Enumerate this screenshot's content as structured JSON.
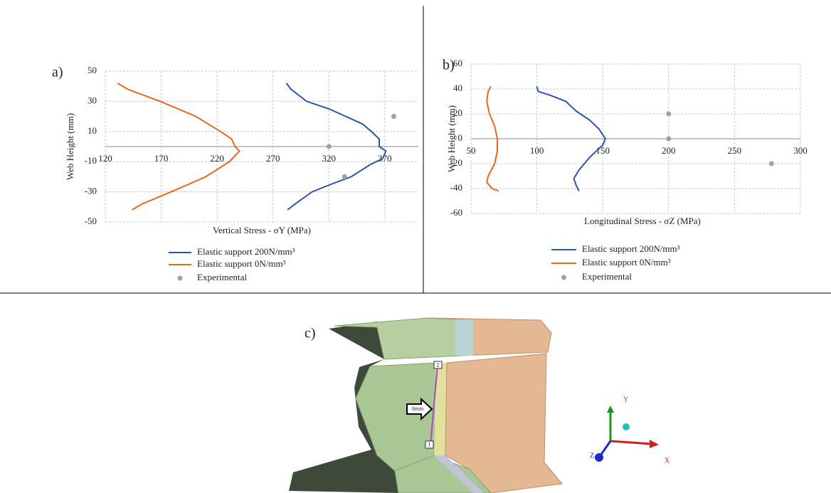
{
  "chart_data": [
    {
      "type": "line",
      "label": "a)",
      "x_label": "Vertical Stress - σY (MPa)",
      "y_label": "Web Height (mm)",
      "xlim": [
        120,
        400
      ],
      "xticks": [
        120,
        170,
        220,
        270,
        320,
        370
      ],
      "ylim": [
        -50,
        50
      ],
      "yticks": [
        -50,
        -30,
        -10,
        10,
        30,
        50
      ],
      "grid": true,
      "series": [
        {
          "name": "Elastic support 200N/mm³",
          "color": "#2e54a4",
          "marker": "line",
          "x": [
            282,
            286,
            300,
            320,
            335,
            350,
            358,
            365,
            365,
            371,
            368,
            357,
            340,
            322,
            305,
            290,
            283
          ],
          "y": [
            42,
            38,
            30,
            25,
            20,
            15,
            10,
            5,
            0,
            -3,
            -8,
            -12,
            -20,
            -25,
            -30,
            -38,
            -42
          ]
        },
        {
          "name": "Elastic support 0N/mm³",
          "color": "#e2691e",
          "marker": "line",
          "x": [
            131,
            140,
            169,
            201,
            223,
            233,
            236,
            240,
            231,
            210,
            179,
            153,
            144
          ],
          "y": [
            42,
            38,
            30,
            20,
            10,
            5,
            0,
            -3,
            -10,
            -20,
            -30,
            -38,
            -42
          ]
        },
        {
          "name": "Experimental",
          "color": "#a0a0a0",
          "marker": "dot",
          "x": [
            320,
            378,
            334
          ],
          "y": [
            0,
            20,
            -20
          ]
        }
      ]
    },
    {
      "type": "line",
      "label": "b)",
      "x_label": "Longitudinal  Stress - σZ (MPa)",
      "y_label": "Web Height (mm)",
      "xlim": [
        50,
        300
      ],
      "xticks": [
        50,
        100,
        150,
        200,
        250,
        300
      ],
      "ylim": [
        -60,
        60
      ],
      "yticks": [
        -60,
        -40,
        -20,
        0,
        20,
        40,
        60
      ],
      "grid": true,
      "series": [
        {
          "name": "Elastic support 200N/mm³",
          "color": "#2e54a4",
          "marker": "line",
          "x": [
            100,
            101,
            110,
            122,
            130,
            140,
            147,
            152,
            150,
            140,
            132,
            128,
            130,
            132
          ],
          "y": [
            42,
            38,
            35,
            30,
            22,
            15,
            8,
            0,
            -5,
            -15,
            -25,
            -32,
            -38,
            -42
          ]
        },
        {
          "name": "Elastic support 0N/mm³",
          "color": "#e2691e",
          "marker": "line",
          "x": [
            65,
            63,
            62,
            64,
            68,
            70,
            70,
            68,
            63,
            62,
            66,
            71
          ],
          "y": [
            42,
            38,
            30,
            20,
            10,
            0,
            -10,
            -20,
            -30,
            -35,
            -40,
            -42
          ]
        },
        {
          "name": "Experimental",
          "color": "#a0a0a0",
          "marker": "dot",
          "x": [
            200,
            200,
            278
          ],
          "y": [
            20,
            0,
            -20
          ]
        }
      ]
    }
  ],
  "illustration": {
    "label": "c)",
    "marker": "0mm",
    "points": [
      "2",
      "1"
    ],
    "axes": [
      "Y",
      "X",
      "Z"
    ]
  }
}
